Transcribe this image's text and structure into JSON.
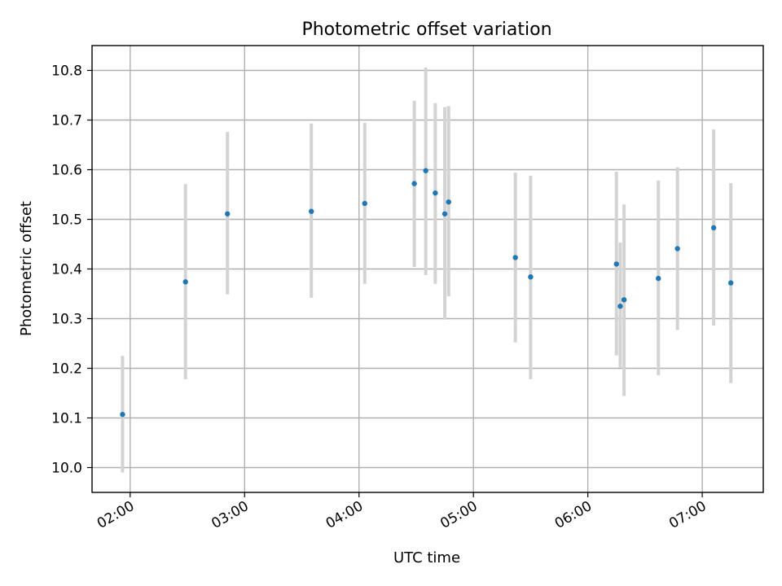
{
  "chart_data": {
    "type": "scatter",
    "title": "Photometric offset variation",
    "xlabel": "UTC time",
    "ylabel": "Photometric offset",
    "x_unit": "time of day (UTC, hours)",
    "xlim": [
      "01:40",
      "07:32"
    ],
    "ylim": [
      9.95,
      10.85
    ],
    "x_ticks": [
      "02:00",
      "03:00",
      "04:00",
      "05:00",
      "06:00",
      "07:00"
    ],
    "y_ticks": [
      10.0,
      10.1,
      10.2,
      10.3,
      10.4,
      10.5,
      10.6,
      10.7,
      10.8
    ],
    "grid": true,
    "point_color": "#1f77b4",
    "errorbar_color": "#d3d3d3",
    "series": [
      {
        "points": [
          {
            "x": "01:56",
            "y": 10.107,
            "yerr_low": 9.99,
            "yerr_high": 10.225
          },
          {
            "x": "02:29",
            "y": 10.374,
            "yerr_low": 10.178,
            "yerr_high": 10.571
          },
          {
            "x": "02:51",
            "y": 10.511,
            "yerr_low": 10.349,
            "yerr_high": 10.676
          },
          {
            "x": "03:35",
            "y": 10.516,
            "yerr_low": 10.342,
            "yerr_high": 10.693
          },
          {
            "x": "04:03",
            "y": 10.532,
            "yerr_low": 10.37,
            "yerr_high": 10.694
          },
          {
            "x": "04:29",
            "y": 10.572,
            "yerr_low": 10.404,
            "yerr_high": 10.739
          },
          {
            "x": "04:35",
            "y": 10.598,
            "yerr_low": 10.388,
            "yerr_high": 10.806
          },
          {
            "x": "04:40",
            "y": 10.553,
            "yerr_low": 10.37,
            "yerr_high": 10.734
          },
          {
            "x": "04:45",
            "y": 10.511,
            "yerr_low": 10.298,
            "yerr_high": 10.726
          },
          {
            "x": "04:47",
            "y": 10.535,
            "yerr_low": 10.345,
            "yerr_high": 10.728
          },
          {
            "x": "05:22",
            "y": 10.423,
            "yerr_low": 10.252,
            "yerr_high": 10.594
          },
          {
            "x": "05:30",
            "y": 10.384,
            "yerr_low": 10.178,
            "yerr_high": 10.588
          },
          {
            "x": "06:15",
            "y": 10.41,
            "yerr_low": 10.226,
            "yerr_high": 10.596
          },
          {
            "x": "06:17",
            "y": 10.325,
            "yerr_low": 10.201,
            "yerr_high": 10.453
          },
          {
            "x": "06:19",
            "y": 10.338,
            "yerr_low": 10.144,
            "yerr_high": 10.53
          },
          {
            "x": "06:37",
            "y": 10.381,
            "yerr_low": 10.186,
            "yerr_high": 10.578
          },
          {
            "x": "06:47",
            "y": 10.441,
            "yerr_low": 10.277,
            "yerr_high": 10.605
          },
          {
            "x": "07:06",
            "y": 10.483,
            "yerr_low": 10.286,
            "yerr_high": 10.681
          },
          {
            "x": "07:15",
            "y": 10.372,
            "yerr_low": 10.17,
            "yerr_high": 10.573
          }
        ]
      }
    ]
  }
}
